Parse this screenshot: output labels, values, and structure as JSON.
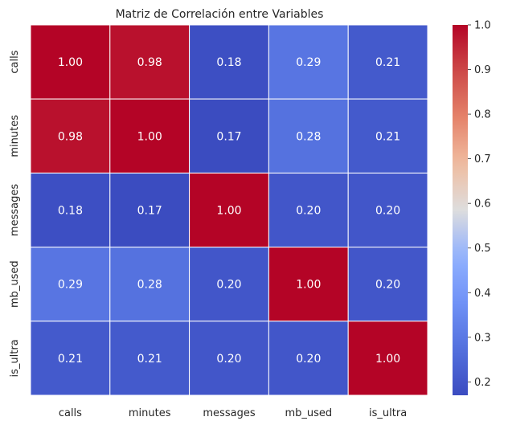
{
  "chart_data": {
    "type": "heatmap",
    "title": "Matriz de Correlación entre Variables",
    "x_labels": [
      "calls",
      "minutes",
      "messages",
      "mb_used",
      "is_ultra"
    ],
    "y_labels": [
      "calls",
      "minutes",
      "messages",
      "mb_used",
      "is_ultra"
    ],
    "values": [
      [
        1.0,
        0.98,
        0.18,
        0.29,
        0.21
      ],
      [
        0.98,
        1.0,
        0.17,
        0.28,
        0.21
      ],
      [
        0.18,
        0.17,
        1.0,
        0.2,
        0.2
      ],
      [
        0.29,
        0.28,
        0.2,
        1.0,
        0.2
      ],
      [
        0.21,
        0.21,
        0.2,
        0.2,
        1.0
      ]
    ],
    "cell_labels": [
      [
        "1.00",
        "0.98",
        "0.18",
        "0.29",
        "0.21"
      ],
      [
        "0.98",
        "1.00",
        "0.17",
        "0.28",
        "0.21"
      ],
      [
        "0.18",
        "0.17",
        "1.00",
        "0.20",
        "0.20"
      ],
      [
        "0.29",
        "0.28",
        "0.20",
        "1.00",
        "0.20"
      ],
      [
        "0.21",
        "0.21",
        "0.20",
        "0.20",
        "1.00"
      ]
    ],
    "colormap": "coolwarm",
    "colorbar": {
      "range": [
        0.17,
        1.0
      ],
      "ticks": [
        0.2,
        0.3,
        0.4,
        0.5,
        0.6,
        0.7,
        0.8,
        0.9,
        1.0
      ],
      "tick_labels": [
        "0.2",
        "0.3",
        "0.4",
        "0.5",
        "0.6",
        "0.7",
        "0.8",
        "0.9",
        "1.0"
      ]
    },
    "annotation_text_color": "#ffffff",
    "cell_border_color": "#ffffff"
  }
}
